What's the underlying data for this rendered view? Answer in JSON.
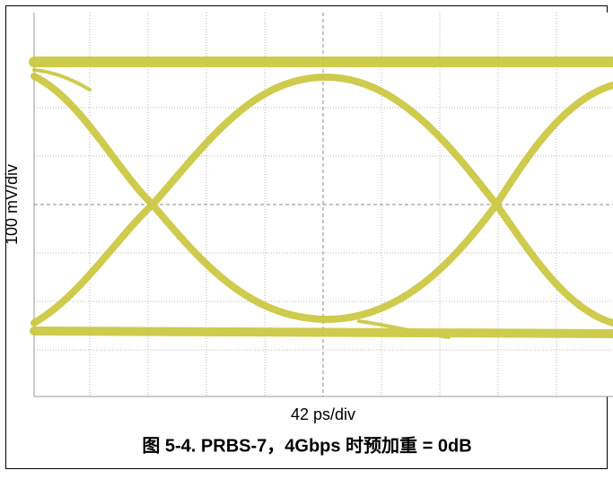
{
  "figure": {
    "y_label": "100 mV/div",
    "x_label": "42 ps/div",
    "caption": "图 5-4. PRBS-7，4Gbps 时预加重 = 0dB"
  }
}
